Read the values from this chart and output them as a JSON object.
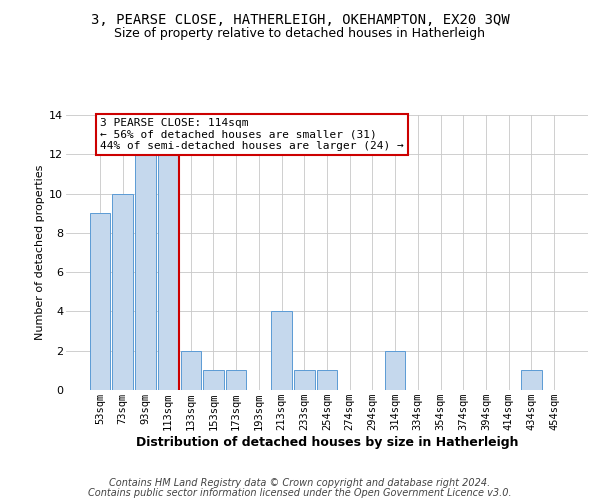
{
  "title": "3, PEARSE CLOSE, HATHERLEIGH, OKEHAMPTON, EX20 3QW",
  "subtitle": "Size of property relative to detached houses in Hatherleigh",
  "xlabel": "Distribution of detached houses by size in Hatherleigh",
  "ylabel": "Number of detached properties",
  "categories": [
    "53sqm",
    "73sqm",
    "93sqm",
    "113sqm",
    "133sqm",
    "153sqm",
    "173sqm",
    "193sqm",
    "213sqm",
    "233sqm",
    "254sqm",
    "274sqm",
    "294sqm",
    "314sqm",
    "334sqm",
    "354sqm",
    "374sqm",
    "394sqm",
    "414sqm",
    "434sqm",
    "454sqm"
  ],
  "values": [
    9,
    10,
    12,
    12,
    2,
    1,
    1,
    0,
    4,
    1,
    1,
    0,
    0,
    2,
    0,
    0,
    0,
    0,
    0,
    1,
    0
  ],
  "bar_color": "#c5d8ed",
  "bar_edge_color": "#5b9bd5",
  "red_line_x": 3.5,
  "annotation_box_text": "3 PEARSE CLOSE: 114sqm\n← 56% of detached houses are smaller (31)\n44% of semi-detached houses are larger (24) →",
  "annotation_box_color": "#ffffff",
  "annotation_box_edge_color": "#cc0000",
  "ylim": [
    0,
    14
  ],
  "yticks": [
    0,
    2,
    4,
    6,
    8,
    10,
    12,
    14
  ],
  "footer_line1": "Contains HM Land Registry data © Crown copyright and database right 2024.",
  "footer_line2": "Contains public sector information licensed under the Open Government Licence v3.0.",
  "background_color": "#ffffff",
  "grid_color": "#c8c8c8",
  "title_fontsize": 10,
  "subtitle_fontsize": 9,
  "xlabel_fontsize": 9,
  "ylabel_fontsize": 8,
  "tick_fontsize": 7.5,
  "annotation_fontsize": 8,
  "footer_fontsize": 7
}
